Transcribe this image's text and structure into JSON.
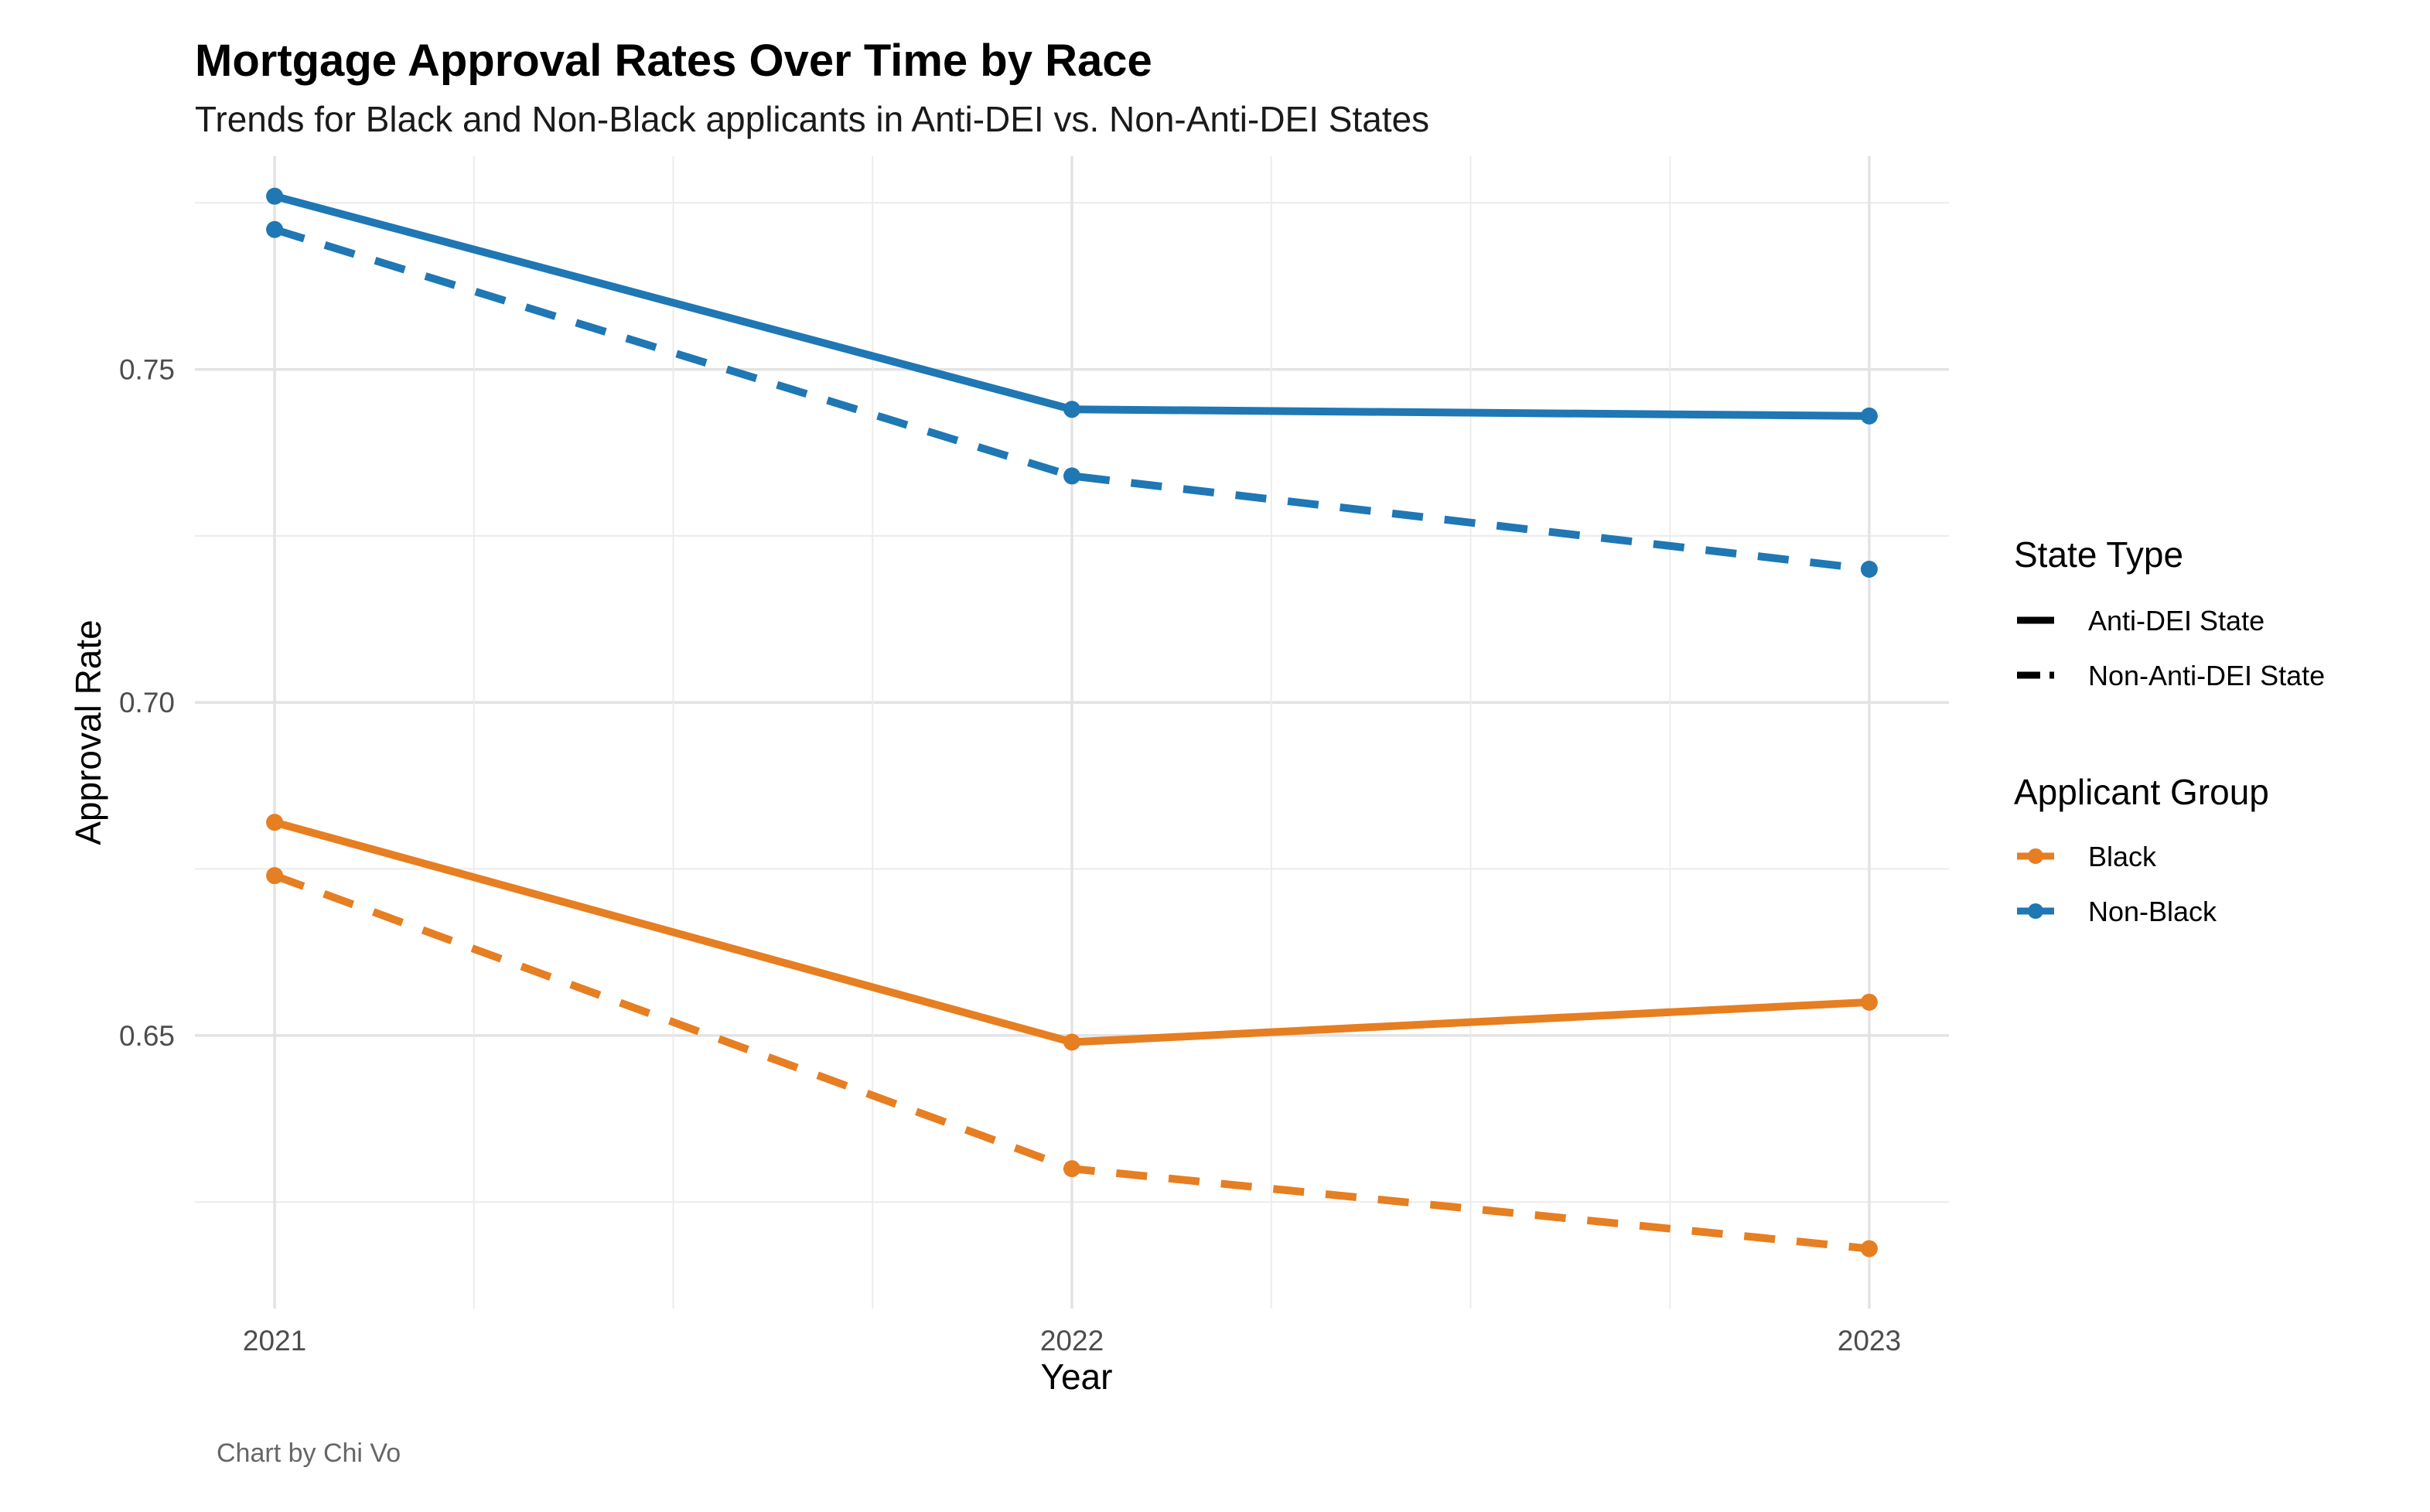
{
  "chart_data": {
    "type": "line",
    "title": "Mortgage Approval Rates Over Time by Race",
    "subtitle": "Trends for Black and Non-Black applicants in Anti-DEI vs. Non-Anti-DEI States",
    "xlabel": "Year",
    "ylabel": "Approval Rate",
    "caption": "Chart by Chi Vo",
    "x": [
      2021,
      2022,
      2023
    ],
    "xlim": [
      2020.9,
      2023.1
    ],
    "ylim": [
      0.609,
      0.782
    ],
    "yticks": [
      0.65,
      0.7,
      0.75
    ],
    "ytick_labels": [
      "0.65",
      "0.70",
      "0.75"
    ],
    "xtick_labels": [
      "2021",
      "2022",
      "2023"
    ],
    "grid": true,
    "legend_position": "right",
    "legends": {
      "state_type": {
        "title": "State Type",
        "entries": [
          {
            "label": "Anti-DEI State",
            "dash": "solid"
          },
          {
            "label": "Non-Anti-DEI State",
            "dash": "dashed"
          }
        ]
      },
      "applicant_group": {
        "title": "Applicant Group",
        "entries": [
          {
            "label": "Black",
            "color": "#e67e22"
          },
          {
            "label": "Non-Black",
            "color": "#1f77b4"
          }
        ]
      }
    },
    "series": [
      {
        "group": "Non-Black",
        "state_type": "Anti-DEI State",
        "color": "#1f77b4",
        "dash": "solid",
        "values": [
          0.776,
          0.744,
          0.743
        ]
      },
      {
        "group": "Non-Black",
        "state_type": "Non-Anti-DEI State",
        "color": "#1f77b4",
        "dash": "dashed",
        "values": [
          0.771,
          0.734,
          0.72
        ]
      },
      {
        "group": "Black",
        "state_type": "Anti-DEI State",
        "color": "#e67e22",
        "dash": "solid",
        "values": [
          0.682,
          0.649,
          0.655
        ]
      },
      {
        "group": "Black",
        "state_type": "Non-Anti-DEI State",
        "color": "#e67e22",
        "dash": "dashed",
        "values": [
          0.674,
          0.63,
          0.618
        ]
      }
    ]
  }
}
